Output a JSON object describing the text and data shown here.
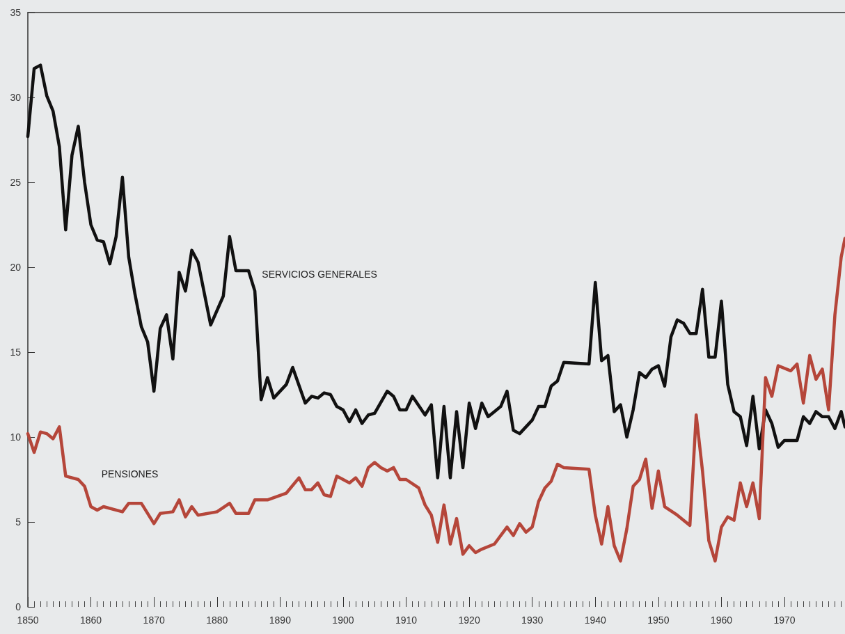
{
  "chart_data": {
    "type": "line",
    "series": [
      {
        "name": "SERVICIOS GENERALES",
        "color": "#111111",
        "x": [
          1850,
          1851,
          1852,
          1853,
          1854,
          1855,
          1856,
          1857,
          1858,
          1859,
          1860,
          1861,
          1862,
          1863,
          1864,
          1865,
          1866,
          1867,
          1868,
          1869,
          1870,
          1871,
          1872,
          1873,
          1874,
          1875,
          1876,
          1877,
          1879,
          1881,
          1882,
          1883,
          1885,
          1886,
          1887,
          1888,
          1889,
          1891,
          1892,
          1894,
          1895,
          1896,
          1897,
          1898,
          1899,
          1900,
          1901,
          1902,
          1903,
          1904,
          1905,
          1907,
          1908,
          1909,
          1910,
          1911,
          1913,
          1914,
          1915,
          1916,
          1917,
          1918,
          1919,
          1920,
          1921,
          1922,
          1923,
          1924,
          1925,
          1926,
          1927,
          1928,
          1930,
          1931,
          1932,
          1933,
          1934,
          1935,
          1939,
          1940,
          1941,
          1942,
          1943,
          1944,
          1945,
          1946,
          1947,
          1948,
          1949,
          1950,
          1951,
          1952,
          1953,
          1954,
          1955,
          1956,
          1957,
          1958,
          1959,
          1960,
          1961,
          1962,
          1963,
          1964,
          1965,
          1966,
          1967,
          1968,
          1969,
          1970,
          1972,
          1973,
          1974,
          1975,
          1976,
          1977,
          1978,
          1979,
          1979.6
        ],
        "values": [
          27.7,
          31.7,
          31.9,
          30.1,
          29.2,
          27.1,
          22.2,
          26.6,
          28.3,
          25.0,
          22.5,
          21.6,
          21.5,
          20.2,
          21.8,
          25.3,
          20.6,
          18.4,
          16.5,
          15.6,
          12.7,
          16.4,
          17.2,
          14.6,
          19.7,
          18.6,
          21.0,
          20.3,
          16.6,
          18.3,
          21.8,
          19.8,
          19.8,
          18.6,
          12.2,
          13.5,
          12.3,
          13.1,
          14.1,
          12.0,
          12.4,
          12.3,
          12.6,
          12.5,
          11.8,
          11.6,
          10.9,
          11.6,
          10.8,
          11.3,
          11.4,
          12.7,
          12.4,
          11.6,
          11.6,
          12.4,
          11.3,
          11.9,
          7.6,
          11.8,
          7.6,
          11.5,
          8.2,
          12.0,
          10.5,
          12.0,
          11.2,
          11.5,
          11.8,
          12.7,
          10.4,
          10.2,
          11.0,
          11.8,
          11.8,
          13.0,
          13.3,
          14.4,
          14.3,
          19.1,
          14.5,
          14.8,
          11.5,
          11.9,
          10.0,
          11.6,
          13.8,
          13.5,
          14.0,
          14.2,
          13.0,
          15.9,
          16.9,
          16.7,
          16.1,
          16.1,
          18.7,
          14.7,
          14.7,
          18.0,
          13.1,
          11.5,
          11.2,
          9.5,
          12.4,
          9.3,
          11.6,
          10.8,
          9.4,
          9.8,
          9.8,
          11.2,
          10.8,
          11.5,
          11.2,
          11.2,
          10.5,
          11.5,
          10.6
        ]
      },
      {
        "name": "PENSIONES",
        "color": "#b5463a",
        "x": [
          1850,
          1851,
          1852,
          1853,
          1854,
          1855,
          1856,
          1858,
          1859,
          1860,
          1861,
          1862,
          1865,
          1866,
          1868,
          1870,
          1871,
          1873,
          1874,
          1875,
          1876,
          1877,
          1880,
          1882,
          1883,
          1885,
          1886,
          1888,
          1891,
          1893,
          1894,
          1895,
          1896,
          1897,
          1898,
          1899,
          1900,
          1901,
          1902,
          1903,
          1904,
          1905,
          1906,
          1907,
          1908,
          1909,
          1910,
          1912,
          1913,
          1914,
          1915,
          1916,
          1917,
          1918,
          1919,
          1920,
          1921,
          1922,
          1924,
          1926,
          1927,
          1928,
          1929,
          1930,
          1931,
          1932,
          1933,
          1934,
          1935,
          1939,
          1940,
          1941,
          1942,
          1943,
          1944,
          1945,
          1946,
          1947,
          1948,
          1949,
          1950,
          1951,
          1953,
          1955,
          1956,
          1957,
          1958,
          1959,
          1960,
          1961,
          1962,
          1963,
          1964,
          1965,
          1966,
          1967,
          1968,
          1969,
          1971,
          1972,
          1973,
          1974,
          1975,
          1976,
          1977,
          1978,
          1979,
          1979.6
        ],
        "values": [
          10.2,
          9.1,
          10.3,
          10.2,
          9.9,
          10.6,
          7.7,
          7.5,
          7.1,
          5.9,
          5.7,
          5.9,
          5.6,
          6.1,
          6.1,
          4.9,
          5.5,
          5.6,
          6.3,
          5.3,
          5.9,
          5.4,
          5.6,
          6.1,
          5.5,
          5.5,
          6.3,
          6.3,
          6.7,
          7.6,
          6.9,
          6.9,
          7.3,
          6.6,
          6.5,
          7.7,
          7.5,
          7.3,
          7.6,
          7.1,
          8.2,
          8.5,
          8.2,
          8.0,
          8.2,
          7.5,
          7.5,
          7.0,
          6.0,
          5.4,
          3.8,
          6.0,
          3.7,
          5.2,
          3.1,
          3.6,
          3.2,
          3.4,
          3.7,
          4.7,
          4.2,
          4.9,
          4.4,
          4.7,
          6.2,
          7.0,
          7.4,
          8.4,
          8.2,
          8.1,
          5.4,
          3.7,
          5.9,
          3.6,
          2.7,
          4.6,
          7.1,
          7.5,
          8.7,
          5.8,
          8.0,
          5.9,
          5.4,
          4.8,
          11.3,
          8.0,
          3.9,
          2.7,
          4.7,
          5.3,
          5.1,
          7.3,
          5.9,
          7.3,
          5.2,
          13.5,
          12.4,
          14.2,
          13.9,
          14.3,
          12.0,
          14.8,
          13.4,
          14.0,
          11.6,
          17.2,
          20.6,
          21.7
        ]
      }
    ],
    "xlim": [
      1850,
      1979.6
    ],
    "xticks": [
      1850,
      1860,
      1870,
      1880,
      1890,
      1900,
      1910,
      1920,
      1930,
      1940,
      1950,
      1960,
      1970,
      {
        "value": 1851,
        "label": null
      },
      {
        "value": 1852,
        "label": null
      },
      {
        "value": 1853,
        "label": null
      },
      {
        "value": 1854,
        "label": null
      },
      {
        "value": 1855,
        "label": null
      },
      {
        "value": 1856,
        "label": null
      },
      {
        "value": 1857,
        "label": null
      },
      {
        "value": 1858,
        "label": null
      },
      {
        "value": 1859,
        "label": null
      },
      {
        "value": 1861,
        "label": null
      },
      {
        "value": 1862,
        "label": null
      },
      {
        "value": 1863,
        "label": null
      },
      {
        "value": 1864,
        "label": null
      },
      {
        "value": 1865,
        "label": null
      },
      {
        "value": 1866,
        "label": null
      },
      {
        "value": 1867,
        "label": null
      },
      {
        "value": 1868,
        "label": null
      },
      {
        "value": 1869,
        "label": null
      },
      {
        "value": 1871,
        "label": null
      },
      {
        "value": 1872,
        "label": null
      },
      {
        "value": 1873,
        "label": null
      },
      {
        "value": 1874,
        "label": null
      },
      {
        "value": 1875,
        "label": null
      },
      {
        "value": 1876,
        "label": null
      },
      {
        "value": 1877,
        "label": null
      },
      {
        "value": 1878,
        "label": null
      },
      {
        "value": 1879,
        "label": null
      },
      {
        "value": 1881,
        "label": null
      },
      {
        "value": 1882,
        "label": null
      },
      {
        "value": 1883,
        "label": null
      },
      {
        "value": 1884,
        "label": null
      },
      {
        "value": 1885,
        "label": null
      },
      {
        "value": 1886,
        "label": null
      },
      {
        "value": 1887,
        "label": null
      },
      {
        "value": 1888,
        "label": null
      },
      {
        "value": 1889,
        "label": null
      },
      {
        "value": 1891,
        "label": null
      },
      {
        "value": 1892,
        "label": null
      },
      {
        "value": 1893,
        "label": null
      },
      {
        "value": 1894,
        "label": null
      },
      {
        "value": 1895,
        "label": null
      },
      {
        "value": 1896,
        "label": null
      },
      {
        "value": 1897,
        "label": null
      },
      {
        "value": 1898,
        "label": null
      },
      {
        "value": 1899,
        "label": null
      },
      {
        "value": 1901,
        "label": null
      },
      {
        "value": 1902,
        "label": null
      },
      {
        "value": 1903,
        "label": null
      },
      {
        "value": 1904,
        "label": null
      },
      {
        "value": 1905,
        "label": null
      },
      {
        "value": 1906,
        "label": null
      },
      {
        "value": 1907,
        "label": null
      },
      {
        "value": 1908,
        "label": null
      },
      {
        "value": 1909,
        "label": null
      },
      {
        "value": 1911,
        "label": null
      },
      {
        "value": 1912,
        "label": null
      },
      {
        "value": 1913,
        "label": null
      },
      {
        "value": 1914,
        "label": null
      },
      {
        "value": 1915,
        "label": null
      },
      {
        "value": 1916,
        "label": null
      },
      {
        "value": 1917,
        "label": null
      },
      {
        "value": 1918,
        "label": null
      },
      {
        "value": 1919,
        "label": null
      },
      {
        "value": 1921,
        "label": null
      },
      {
        "value": 1922,
        "label": null
      },
      {
        "value": 1923,
        "label": null
      },
      {
        "value": 1924,
        "label": null
      },
      {
        "value": 1925,
        "label": null
      },
      {
        "value": 1926,
        "label": null
      },
      {
        "value": 1927,
        "label": null
      },
      {
        "value": 1928,
        "label": null
      },
      {
        "value": 1929,
        "label": null
      },
      {
        "value": 1931,
        "label": null
      },
      {
        "value": 1932,
        "label": null
      },
      {
        "value": 1933,
        "label": null
      },
      {
        "value": 1934,
        "label": null
      },
      {
        "value": 1935,
        "label": null
      },
      {
        "value": 1936,
        "label": null
      },
      {
        "value": 1937,
        "label": null
      },
      {
        "value": 1938,
        "label": null
      },
      {
        "value": 1939,
        "label": null
      },
      {
        "value": 1941,
        "label": null
      },
      {
        "value": 1942,
        "label": null
      },
      {
        "value": 1943,
        "label": null
      },
      {
        "value": 1944,
        "label": null
      },
      {
        "value": 1945,
        "label": null
      },
      {
        "value": 1946,
        "label": null
      },
      {
        "value": 1947,
        "label": null
      },
      {
        "value": 1948,
        "label": null
      },
      {
        "value": 1949,
        "label": null
      },
      {
        "value": 1951,
        "label": null
      },
      {
        "value": 1952,
        "label": null
      },
      {
        "value": 1953,
        "label": null
      },
      {
        "value": 1954,
        "label": null
      },
      {
        "value": 1955,
        "label": null
      },
      {
        "value": 1956,
        "label": null
      },
      {
        "value": 1957,
        "label": null
      },
      {
        "value": 1958,
        "label": null
      },
      {
        "value": 1959,
        "label": null
      },
      {
        "value": 1961,
        "label": null
      },
      {
        "value": 1962,
        "label": null
      },
      {
        "value": 1963,
        "label": null
      },
      {
        "value": 1964,
        "label": null
      },
      {
        "value": 1965,
        "label": null
      },
      {
        "value": 1966,
        "label": null
      },
      {
        "value": 1967,
        "label": null
      },
      {
        "value": 1968,
        "label": null
      },
      {
        "value": 1969,
        "label": null
      },
      {
        "value": 1971,
        "label": null
      },
      {
        "value": 1972,
        "label": null
      },
      {
        "value": 1973,
        "label": null
      },
      {
        "value": 1974,
        "label": null
      },
      {
        "value": 1975,
        "label": null
      },
      {
        "value": 1976,
        "label": null
      },
      {
        "value": 1977,
        "label": null
      },
      {
        "value": 1978,
        "label": null
      },
      {
        "value": 1979,
        "label": null
      }
    ],
    "ylim": [
      0,
      35
    ],
    "yticks": [
      0,
      5,
      10,
      15,
      20,
      25,
      30,
      35
    ],
    "grid": false,
    "legend": false,
    "marker": "none",
    "line_style": "solid"
  }
}
